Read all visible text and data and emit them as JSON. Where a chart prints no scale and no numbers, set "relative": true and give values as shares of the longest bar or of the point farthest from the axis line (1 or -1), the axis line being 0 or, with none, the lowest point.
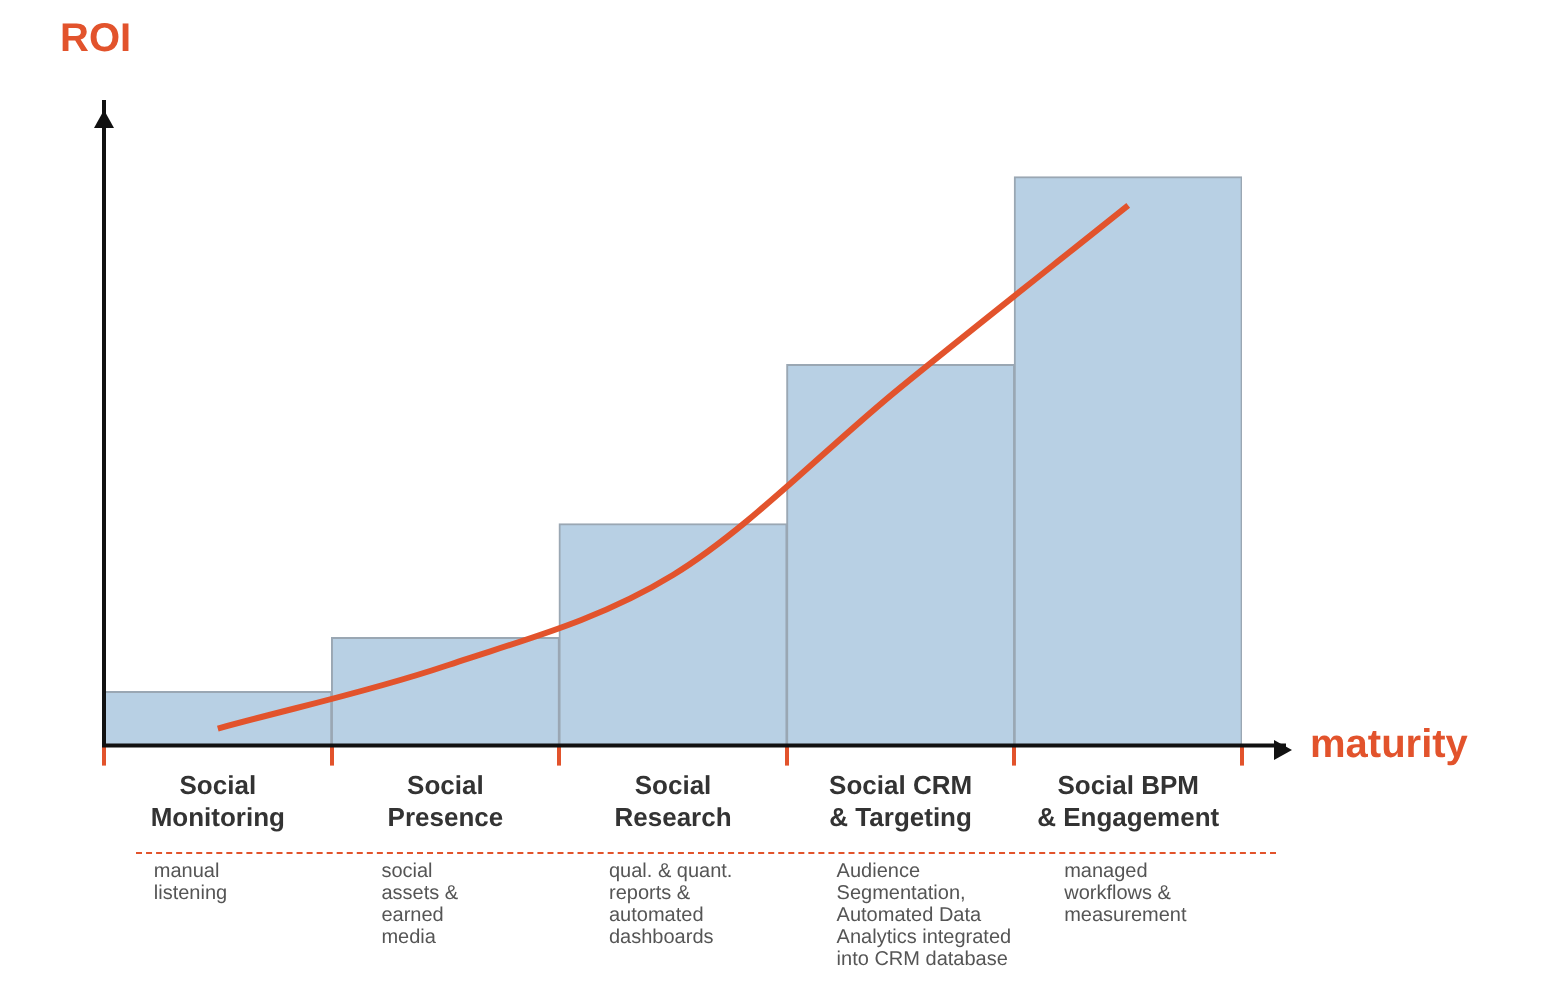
{
  "chart_data": {
    "type": "bar",
    "relative": true,
    "xlabel": "maturity",
    "ylabel": "ROI",
    "categories": [
      "Social\nMonitoring",
      "Social\nPresence",
      "Social\nResearch",
      "Social CRM\n& Targeting",
      "Social BPM\n& Engagement"
    ],
    "series": [
      {
        "color": "#b8d0e4",
        "values": [
          0.095,
          0.19,
          0.39,
          0.67,
          1
        ]
      },
      {
        "type": "line",
        "color": "#e2532c",
        "values": [
          0.03,
          0.14,
          0.3,
          0.63,
          0.95
        ]
      }
    ],
    "annotations": [
      "manual\nlistening",
      "social\nassets &\nearned\nmedia",
      "qual. & quant.\nreports &\nautomated\ndashboards",
      "Audience\nSegmentation,\nAutomated Data\nAnalytics integrated\ninto CRM database",
      "managed\nworkflows &\nmeasurement"
    ],
    "legend": false,
    "grid": false,
    "marker": "none",
    "line_style": "solid"
  }
}
